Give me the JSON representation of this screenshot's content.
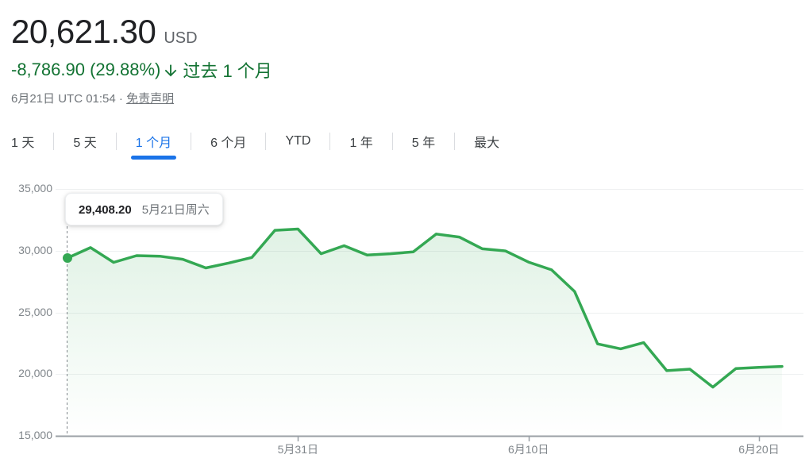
{
  "header": {
    "price": "20,621.30",
    "currency": "USD",
    "change": "-8,786.90 (29.88%)",
    "change_direction": "down",
    "change_period": "过去 1 个月",
    "as_of": "6月21日 UTC 01:54",
    "separator": "·",
    "disclaimer": "免责声明"
  },
  "tabs": [
    {
      "label": "1 天",
      "selected": false
    },
    {
      "label": "5 天",
      "selected": false
    },
    {
      "label": "1 个月",
      "selected": true
    },
    {
      "label": "6 个月",
      "selected": false
    },
    {
      "label": "YTD",
      "selected": false
    },
    {
      "label": "1 年",
      "selected": false
    },
    {
      "label": "5 年",
      "selected": false
    },
    {
      "label": "最大",
      "selected": false
    }
  ],
  "colors": {
    "change_text_green": "#137333",
    "line_green": "#34a853",
    "area_fill_green": "rgba(52,168,83,0.18)",
    "tab_active_blue": "#1a73e8",
    "primary_text": "#202124",
    "secondary_text": "#5f6368",
    "muted_text": "#70757a",
    "axis_text": "#80868b",
    "gridline": "#eef0f1",
    "axis_line": "#9aa0a6",
    "divider": "#dadce0"
  },
  "chart_data": {
    "type": "area",
    "ylabel": "",
    "xlabel": "",
    "ylim": [
      15000,
      35000
    ],
    "grid": true,
    "x": [
      "5月21日",
      "5月22日",
      "5月23日",
      "5月24日",
      "5月25日",
      "5月26日",
      "5月27日",
      "5月28日",
      "5月29日",
      "5月30日",
      "5月31日",
      "6月1日",
      "6月2日",
      "6月3日",
      "6月4日",
      "6月5日",
      "6月6日",
      "6月7日",
      "6月8日",
      "6月9日",
      "6月10日",
      "6月11日",
      "6月12日",
      "6月13日",
      "6月14日",
      "6月15日",
      "6月16日",
      "6月17日",
      "6月18日",
      "6月19日",
      "6月20日",
      "6月21日"
    ],
    "series": [
      {
        "name": "price_usd",
        "values": [
          29408.2,
          30250,
          29050,
          29600,
          29550,
          29300,
          28600,
          29000,
          29450,
          31650,
          31750,
          29750,
          30400,
          29650,
          29750,
          29900,
          31350,
          31100,
          30150,
          29980,
          29080,
          28450,
          26700,
          22450,
          22050,
          22550,
          20280,
          20400,
          18950,
          20450,
          20550,
          20621.3
        ]
      }
    ],
    "y_ticks": [
      {
        "value": 35000,
        "label": "35,000"
      },
      {
        "value": 30000,
        "label": "30,000"
      },
      {
        "value": 25000,
        "label": "25,000"
      },
      {
        "value": 20000,
        "label": "20,000"
      },
      {
        "value": 15000,
        "label": "15,000"
      }
    ],
    "x_ticks": [
      {
        "index": 10,
        "label": "5月31日"
      },
      {
        "index": 20,
        "label": "6月10日"
      },
      {
        "index": 30,
        "label": "6月20日"
      }
    ],
    "highlight": {
      "index": 0,
      "value": 29408.2,
      "price": "29,408.20",
      "date": "5月21日周六"
    },
    "legend": "none"
  }
}
